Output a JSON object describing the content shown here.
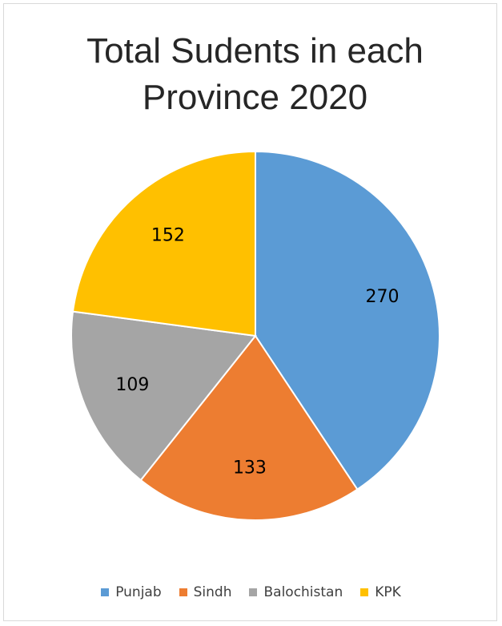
{
  "chart_data": {
    "type": "pie",
    "title": "Total Sudents in each Province 2020",
    "categories": [
      "Punjab",
      "Sindh",
      "Balochistan",
      "KPK"
    ],
    "values": [
      270,
      133,
      109,
      152
    ],
    "colors": [
      "#5b9bd5",
      "#ed7d31",
      "#a5a5a5",
      "#ffc000"
    ],
    "legend": "bottom"
  }
}
